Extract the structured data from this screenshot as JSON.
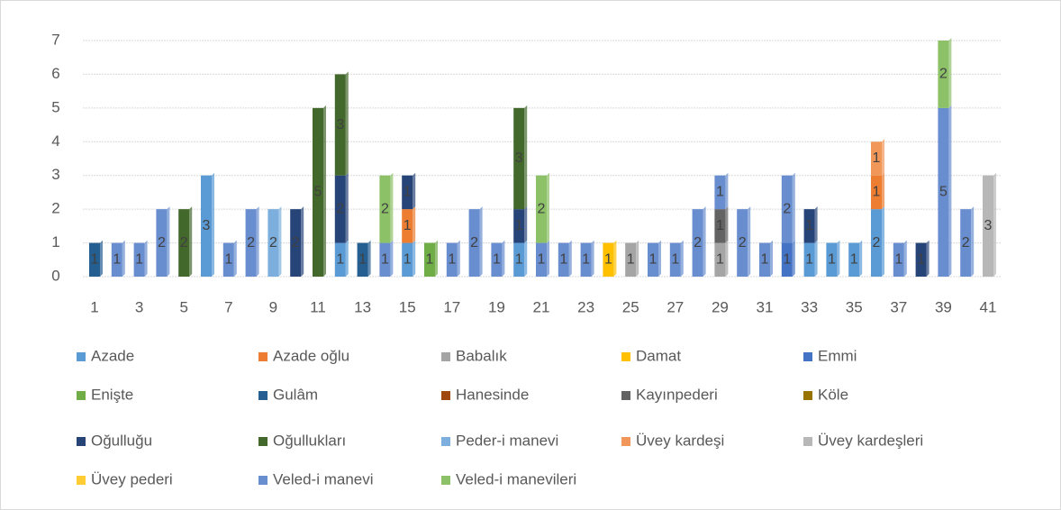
{
  "chart_data": {
    "type": "bar",
    "stacked": true,
    "categories": [
      1,
      null,
      3,
      null,
      5,
      null,
      7,
      null,
      9,
      null,
      11,
      null,
      13,
      null,
      15,
      null,
      17,
      null,
      19,
      null,
      21,
      null,
      23,
      null,
      25,
      null,
      27,
      null,
      29,
      null,
      31,
      null,
      33,
      null,
      35,
      null,
      37,
      null,
      39,
      null,
      41
    ],
    "ylim": [
      0,
      7
    ],
    "yticks": [
      0,
      1,
      2,
      3,
      4,
      5,
      6,
      7
    ],
    "grid": true,
    "legend": "bottom",
    "series": [
      {
        "name": "Azade",
        "color": "#5b9bd5",
        "values": [
          null,
          null,
          null,
          null,
          null,
          3,
          null,
          null,
          null,
          null,
          null,
          1,
          null,
          null,
          1,
          null,
          null,
          null,
          null,
          1,
          null,
          null,
          null,
          null,
          null,
          null,
          null,
          null,
          null,
          null,
          null,
          null,
          1,
          1,
          1,
          2,
          null,
          null,
          null,
          null,
          null
        ]
      },
      {
        "name": "Azade oğlu",
        "color": "#ed7d31",
        "values": [
          null,
          null,
          null,
          null,
          null,
          null,
          null,
          null,
          null,
          null,
          null,
          null,
          null,
          null,
          1,
          null,
          null,
          null,
          null,
          null,
          null,
          null,
          null,
          null,
          null,
          null,
          null,
          null,
          null,
          null,
          null,
          null,
          null,
          null,
          null,
          1,
          null,
          null,
          null,
          null,
          null
        ]
      },
      {
        "name": "Babalık",
        "color": "#a5a5a5",
        "values": [
          null,
          null,
          null,
          null,
          null,
          null,
          null,
          null,
          null,
          null,
          null,
          null,
          null,
          null,
          null,
          null,
          null,
          null,
          null,
          null,
          null,
          null,
          null,
          null,
          1,
          null,
          null,
          null,
          1,
          null,
          null,
          null,
          null,
          null,
          null,
          null,
          null,
          null,
          null,
          null,
          null
        ]
      },
      {
        "name": "Damat",
        "color": "#ffc000",
        "values": [
          null,
          null,
          null,
          null,
          null,
          null,
          null,
          null,
          null,
          null,
          null,
          null,
          null,
          null,
          null,
          null,
          null,
          null,
          null,
          null,
          null,
          null,
          null,
          1,
          null,
          null,
          null,
          null,
          null,
          null,
          null,
          null,
          null,
          null,
          null,
          null,
          null,
          null,
          null,
          null,
          null
        ]
      },
      {
        "name": "Emmi",
        "color": "#4472c4",
        "values": [
          null,
          null,
          null,
          null,
          null,
          null,
          null,
          null,
          null,
          null,
          null,
          null,
          null,
          null,
          null,
          null,
          null,
          null,
          null,
          null,
          null,
          null,
          null,
          null,
          null,
          null,
          null,
          null,
          null,
          null,
          null,
          1,
          null,
          null,
          null,
          null,
          null,
          null,
          null,
          null,
          null
        ]
      },
      {
        "name": "Enişte",
        "color": "#70ad47",
        "values": [
          null,
          null,
          null,
          null,
          null,
          null,
          null,
          null,
          null,
          null,
          null,
          null,
          null,
          null,
          null,
          1,
          null,
          null,
          null,
          null,
          null,
          null,
          null,
          null,
          null,
          null,
          null,
          null,
          null,
          null,
          null,
          null,
          null,
          null,
          null,
          null,
          null,
          null,
          null,
          null,
          null
        ]
      },
      {
        "name": "Gulâm",
        "color": "#255e91",
        "values": [
          1,
          null,
          null,
          null,
          null,
          null,
          null,
          null,
          null,
          null,
          null,
          null,
          1,
          null,
          null,
          null,
          null,
          null,
          null,
          null,
          null,
          null,
          null,
          null,
          null,
          null,
          null,
          null,
          null,
          null,
          null,
          null,
          null,
          null,
          null,
          null,
          null,
          null,
          null,
          null,
          null
        ]
      },
      {
        "name": "Hanesinde",
        "color": "#9e480e",
        "values": [
          null,
          null,
          null,
          null,
          null,
          null,
          null,
          null,
          null,
          null,
          null,
          null,
          null,
          null,
          null,
          null,
          null,
          null,
          null,
          null,
          null,
          null,
          null,
          null,
          null,
          null,
          null,
          null,
          null,
          null,
          null,
          null,
          null,
          null,
          null,
          null,
          null,
          null,
          null,
          null,
          null
        ]
      },
      {
        "name": "Kayınpederi",
        "color": "#636363",
        "values": [
          null,
          null,
          null,
          null,
          null,
          null,
          null,
          null,
          null,
          null,
          null,
          null,
          null,
          null,
          null,
          null,
          null,
          null,
          null,
          null,
          null,
          null,
          null,
          null,
          null,
          null,
          null,
          null,
          1,
          null,
          null,
          null,
          null,
          null,
          null,
          null,
          null,
          null,
          null,
          null,
          null
        ]
      },
      {
        "name": "Köle",
        "color": "#997300",
        "values": [
          null,
          null,
          null,
          null,
          null,
          null,
          null,
          null,
          null,
          null,
          null,
          null,
          null,
          null,
          null,
          null,
          null,
          null,
          null,
          null,
          null,
          null,
          null,
          null,
          null,
          null,
          null,
          null,
          null,
          null,
          null,
          null,
          null,
          null,
          null,
          null,
          null,
          null,
          null,
          null,
          null
        ]
      },
      {
        "name": "Oğulluğu",
        "color": "#264478",
        "values": [
          null,
          null,
          null,
          null,
          null,
          null,
          null,
          null,
          null,
          2,
          null,
          2,
          null,
          null,
          1,
          null,
          null,
          null,
          null,
          1,
          null,
          null,
          null,
          null,
          null,
          null,
          null,
          null,
          null,
          null,
          null,
          null,
          1,
          null,
          null,
          null,
          null,
          1,
          null,
          null,
          null
        ]
      },
      {
        "name": "Oğullukları",
        "color": "#43682b",
        "values": [
          null,
          null,
          null,
          null,
          2,
          null,
          null,
          null,
          null,
          null,
          5,
          3,
          null,
          null,
          null,
          null,
          null,
          null,
          null,
          3,
          null,
          null,
          null,
          null,
          null,
          null,
          null,
          null,
          null,
          null,
          null,
          null,
          null,
          null,
          null,
          null,
          null,
          null,
          null,
          null,
          null
        ]
      },
      {
        "name": "Peder-i manevi",
        "color": "#7cafdd",
        "values": [
          null,
          null,
          null,
          null,
          null,
          null,
          null,
          null,
          2,
          null,
          null,
          null,
          null,
          null,
          null,
          null,
          null,
          null,
          null,
          null,
          null,
          null,
          null,
          null,
          null,
          null,
          null,
          null,
          null,
          null,
          null,
          null,
          null,
          null,
          null,
          null,
          null,
          null,
          null,
          null,
          null
        ]
      },
      {
        "name": "Üvey kardeşi",
        "color": "#f1975a",
        "values": [
          null,
          null,
          null,
          null,
          null,
          null,
          null,
          null,
          null,
          null,
          null,
          null,
          null,
          null,
          null,
          null,
          null,
          null,
          null,
          null,
          null,
          null,
          null,
          null,
          null,
          null,
          null,
          null,
          null,
          null,
          null,
          null,
          null,
          null,
          null,
          1,
          null,
          null,
          null,
          null,
          null
        ]
      },
      {
        "name": "Üvey kardeşleri",
        "color": "#b7b7b7",
        "values": [
          null,
          null,
          null,
          null,
          null,
          null,
          null,
          null,
          null,
          null,
          null,
          null,
          null,
          null,
          null,
          null,
          null,
          null,
          null,
          null,
          null,
          null,
          null,
          null,
          null,
          null,
          null,
          null,
          null,
          null,
          null,
          null,
          null,
          null,
          null,
          null,
          null,
          null,
          null,
          null,
          3
        ]
      },
      {
        "name": "Üvey pederi",
        "color": "#ffcd33",
        "values": [
          null,
          null,
          null,
          null,
          null,
          null,
          null,
          null,
          null,
          null,
          null,
          null,
          null,
          null,
          null,
          null,
          null,
          null,
          null,
          null,
          null,
          null,
          null,
          null,
          null,
          null,
          null,
          null,
          null,
          null,
          null,
          null,
          null,
          null,
          null,
          null,
          null,
          null,
          null,
          null,
          null
        ]
      },
      {
        "name": "Veled-i manevi",
        "color": "#698ed0",
        "values": [
          null,
          1,
          1,
          2,
          null,
          null,
          1,
          2,
          null,
          null,
          null,
          null,
          null,
          1,
          null,
          null,
          1,
          2,
          1,
          null,
          1,
          1,
          1,
          null,
          null,
          1,
          1,
          2,
          1,
          2,
          1,
          2,
          null,
          null,
          null,
          null,
          1,
          null,
          5,
          2,
          null
        ]
      },
      {
        "name": "Veled-i manevileri",
        "color": "#8cc168",
        "values": [
          null,
          null,
          null,
          null,
          null,
          null,
          null,
          null,
          null,
          null,
          null,
          null,
          null,
          2,
          null,
          null,
          null,
          null,
          null,
          null,
          2,
          null,
          null,
          null,
          null,
          null,
          null,
          null,
          null,
          null,
          null,
          null,
          null,
          null,
          null,
          null,
          null,
          null,
          2,
          null,
          null
        ]
      }
    ]
  }
}
